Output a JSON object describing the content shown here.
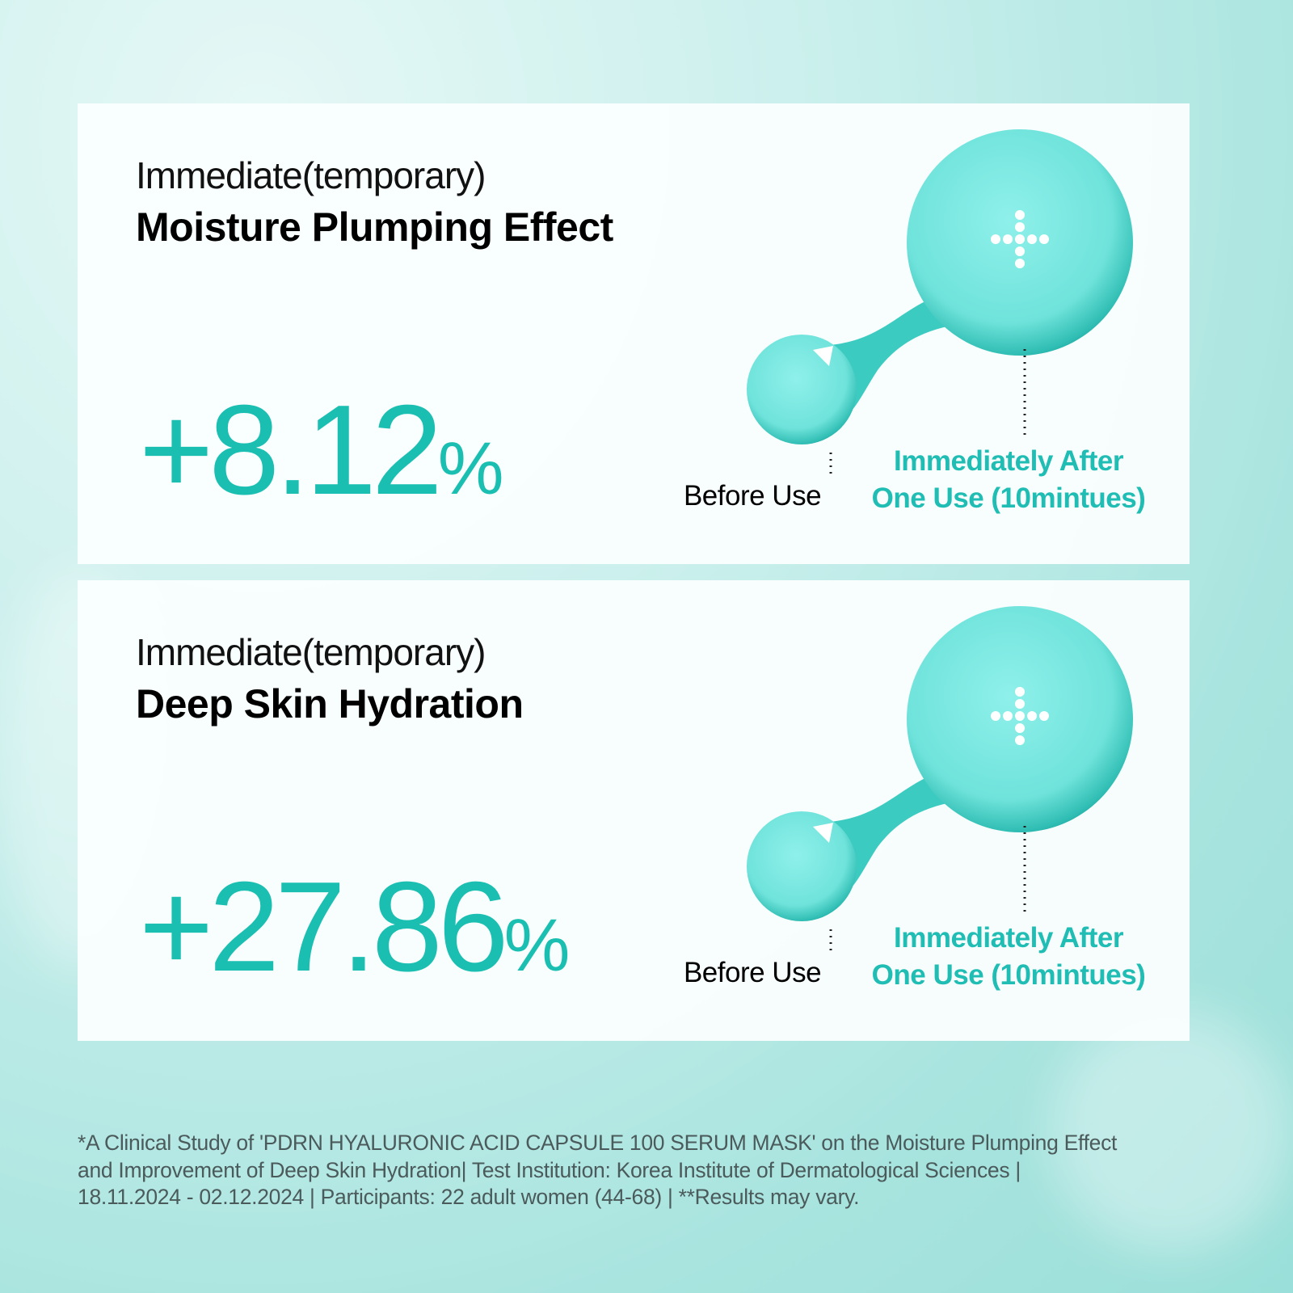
{
  "accent_color": "#1fbdb3",
  "panels": [
    {
      "subtitle": "Immediate(temporary)",
      "title": "Moisture Plumping Effect",
      "value": "+8.12",
      "unit": "%",
      "before_label": "Before Use",
      "after_label_line1": "Immediately After",
      "after_label_line2": "One Use (10mintues)",
      "icon": "dotted-plus-icon"
    },
    {
      "subtitle": "Immediate(temporary)",
      "title": "Deep Skin Hydration",
      "value": "+27.86",
      "unit": "%",
      "before_label": "Before Use",
      "after_label_line1": "Immediately After",
      "after_label_line2": "One Use (10mintues)",
      "icon": "dotted-plus-icon"
    }
  ],
  "footnote": {
    "line1": "*A Clinical Study of 'PDRN HYALURONIC ACID CAPSULE 100 SERUM MASK' on the Moisture Plumping Effect",
    "line2": "and Improvement of Deep Skin Hydration| Test Institution: Korea Institute of Dermatological Sciences |",
    "line3": "18.11.2024 - 02.12.2024 | Participants: 22 adult women (44-68) | **Results may vary."
  }
}
